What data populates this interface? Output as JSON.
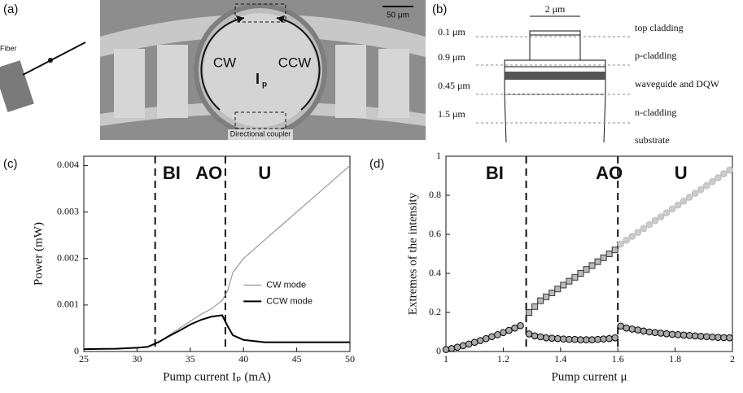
{
  "panel_labels": [
    "(a)",
    "(b)",
    "(c)",
    "(d)"
  ],
  "device_image": {
    "fiber": "Fiber",
    "cw": "CW",
    "ccw": "CCW",
    "current": "I",
    "current_sub": "p",
    "coupler": "Directional coupler",
    "scale": "50 μm"
  },
  "layer_diagram": {
    "width": "2 μm",
    "thicknesses": [
      "0.1 μm",
      "0.9 μm",
      "0.45 μm",
      "1.5 μm"
    ],
    "layers": [
      "top cladding",
      "p-cladding",
      "waveguide and DQW",
      "n-cladding",
      "substrate"
    ]
  },
  "chart_data": [
    {
      "type": "line",
      "xlabel": "Pump current Iₚ (mA)",
      "ylabel": "Power (mW)",
      "xlim": [
        25,
        50
      ],
      "xticks": [
        25,
        30,
        35,
        40,
        45,
        50
      ],
      "ylim": [
        0,
        0.0042
      ],
      "yticks": [
        0,
        0.001,
        0.002,
        0.003,
        0.004
      ],
      "vlines": [
        31.7,
        38.3
      ],
      "regions": [
        "BI",
        "AO",
        "U"
      ],
      "legend": "right",
      "x": [
        25,
        28,
        30,
        31,
        32,
        33,
        34,
        35,
        36,
        37,
        38,
        38.5,
        39,
        40,
        42,
        44,
        46,
        48,
        50
      ],
      "series": [
        {
          "name": "CW mode",
          "color": "#999999",
          "values": [
            5e-05,
            6e-05,
            8e-05,
            0.0001,
            0.0002,
            0.00035,
            0.0005,
            0.00065,
            0.0008,
            0.00092,
            0.0011,
            0.0013,
            0.0017,
            0.002,
            0.0024,
            0.0028,
            0.0032,
            0.0036,
            0.004
          ]
        },
        {
          "name": "CCW mode",
          "color": "#000000",
          "values": [
            5e-05,
            6e-05,
            8e-05,
            0.0001,
            0.0002,
            0.00033,
            0.00045,
            0.00058,
            0.00068,
            0.00075,
            0.00078,
            0.00055,
            0.00035,
            0.00025,
            0.0002,
            0.0002,
            0.0002,
            0.0002,
            0.0002
          ]
        }
      ]
    },
    {
      "type": "scatter",
      "xlabel": "Pump current μ",
      "ylabel": "Extremes of the intensity",
      "xlim": [
        1,
        2
      ],
      "xticks": [
        1,
        1.2,
        1.4,
        1.6,
        1.8,
        2
      ],
      "ylim": [
        0,
        1
      ],
      "yticks": [
        0,
        0.2,
        0.4,
        0.6,
        0.8,
        1
      ],
      "vlines": [
        1.28,
        1.6
      ],
      "regions": [
        "BI",
        "AO",
        "U"
      ],
      "series": [
        {
          "marker": "circle",
          "color": "#000000",
          "fill": "#aaaaaa",
          "x": [
            1,
            1.02,
            1.04,
            1.06,
            1.08,
            1.1,
            1.12,
            1.14,
            1.16,
            1.18,
            1.2,
            1.22,
            1.24,
            1.26
          ],
          "values": [
            0.01,
            0.015,
            0.022,
            0.03,
            0.038,
            0.047,
            0.056,
            0.066,
            0.076,
            0.086,
            0.097,
            0.108,
            0.12,
            0.132
          ]
        },
        {
          "marker": "square",
          "color": "#333333",
          "fill": "#bbbbbb",
          "x": [
            1.29,
            1.31,
            1.33,
            1.35,
            1.37,
            1.39,
            1.41,
            1.43,
            1.45,
            1.47,
            1.49,
            1.51,
            1.53,
            1.55,
            1.57,
            1.59
          ],
          "values": [
            0.2,
            0.23,
            0.26,
            0.28,
            0.3,
            0.32,
            0.34,
            0.36,
            0.38,
            0.4,
            0.42,
            0.44,
            0.46,
            0.48,
            0.5,
            0.52
          ]
        },
        {
          "marker": "circle",
          "color": "#000000",
          "fill": "#aaaaaa",
          "x": [
            1.29,
            1.31,
            1.33,
            1.35,
            1.37,
            1.39,
            1.41,
            1.43,
            1.45,
            1.47,
            1.49,
            1.51,
            1.53,
            1.55,
            1.57,
            1.59
          ],
          "values": [
            0.09,
            0.08,
            0.075,
            0.07,
            0.068,
            0.066,
            0.064,
            0.062,
            0.062,
            0.06,
            0.06,
            0.06,
            0.062,
            0.064,
            0.066,
            0.07
          ]
        },
        {
          "marker": "circle",
          "color": "#bbbbbb",
          "fill": "#cccccc",
          "x": [
            1.61,
            1.63,
            1.65,
            1.67,
            1.69,
            1.71,
            1.73,
            1.75,
            1.77,
            1.79,
            1.81,
            1.83,
            1.85,
            1.87,
            1.89,
            1.91,
            1.93,
            1.95,
            1.97,
            1.99
          ],
          "values": [
            0.55,
            0.57,
            0.59,
            0.61,
            0.63,
            0.65,
            0.67,
            0.69,
            0.71,
            0.73,
            0.75,
            0.77,
            0.79,
            0.81,
            0.83,
            0.85,
            0.87,
            0.89,
            0.91,
            0.93
          ]
        },
        {
          "marker": "circle",
          "color": "#000000",
          "fill": "#aaaaaa",
          "x": [
            1.61,
            1.63,
            1.65,
            1.67,
            1.69,
            1.71,
            1.73,
            1.75,
            1.77,
            1.79,
            1.81,
            1.83,
            1.85,
            1.87,
            1.89,
            1.91,
            1.93,
            1.95,
            1.97,
            1.99
          ],
          "values": [
            0.13,
            0.12,
            0.115,
            0.11,
            0.105,
            0.1,
            0.097,
            0.094,
            0.091,
            0.088,
            0.086,
            0.084,
            0.082,
            0.08,
            0.078,
            0.076,
            0.074,
            0.072,
            0.071,
            0.07
          ]
        }
      ]
    }
  ]
}
